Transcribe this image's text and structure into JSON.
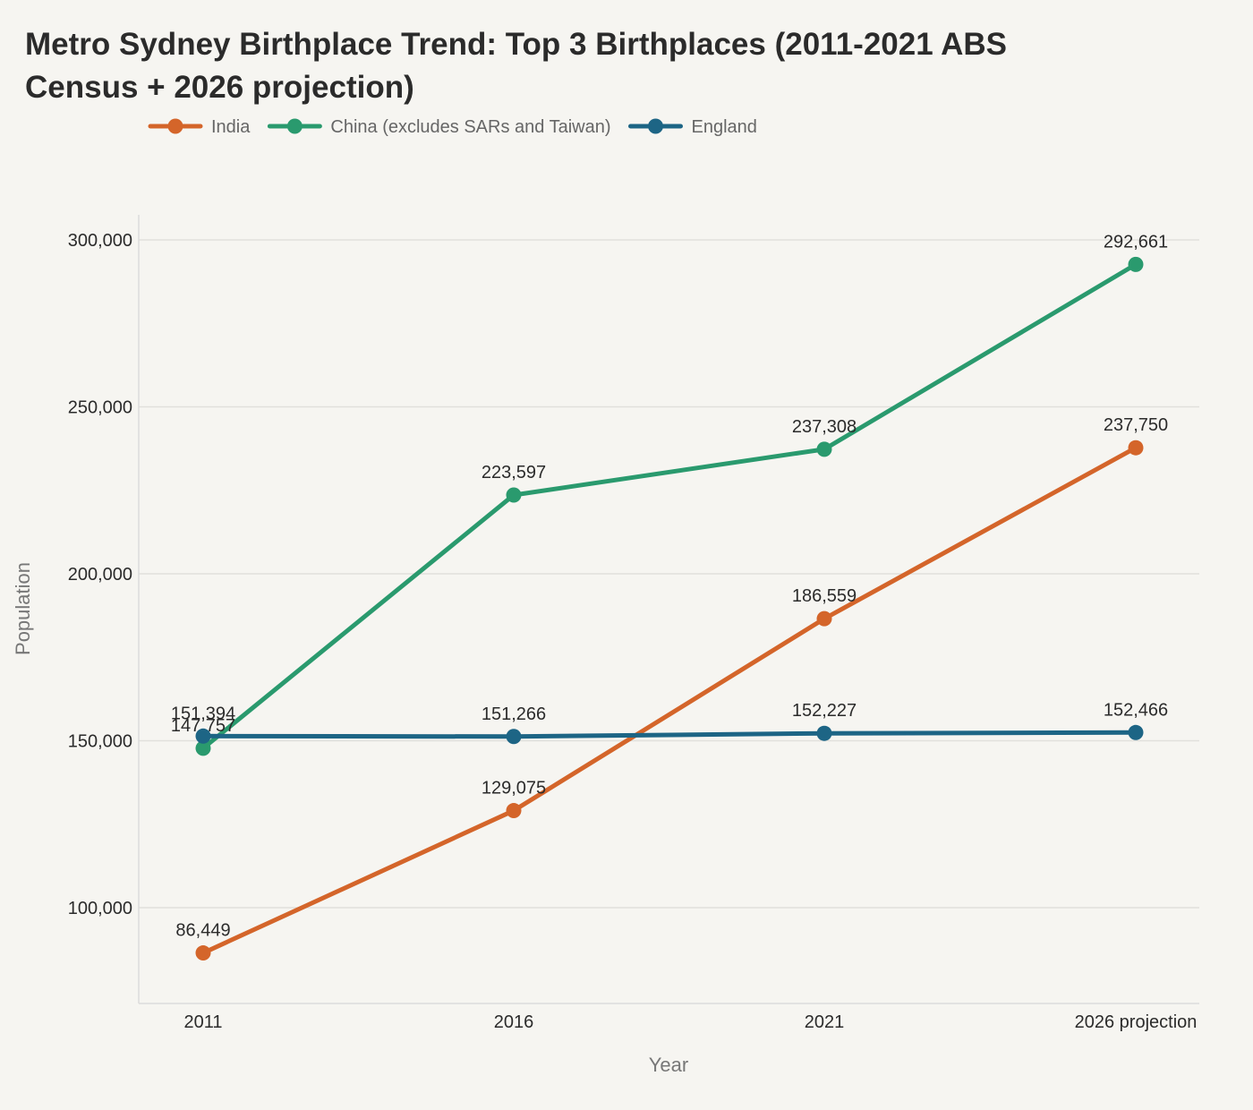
{
  "chart_data": {
    "type": "line",
    "title": "Metro Sydney Birthplace Trend: Top 3 Birthplaces (2011-2021 ABS Census + 2026 projection)",
    "xlabel": "Year",
    "ylabel": "Population",
    "categories": [
      "2011",
      "2016",
      "2021",
      "2026 projection"
    ],
    "ylim": [
      72000,
      308000
    ],
    "yticks": [
      100000,
      150000,
      200000,
      250000,
      300000
    ],
    "ytick_labels": [
      "100,000",
      "150,000",
      "200,000",
      "250,000",
      "300,000"
    ],
    "grid": true,
    "legend_position": "top-left",
    "series": [
      {
        "name": "India",
        "color": "#d4652a",
        "values": [
          86449,
          129075,
          186559,
          237750
        ],
        "labels": [
          "86,449",
          "129,075",
          "186,559",
          "237,750"
        ]
      },
      {
        "name": "China (excludes SARs and Taiwan)",
        "color": "#2a9a6e",
        "values": [
          147757,
          223597,
          237308,
          292661
        ],
        "labels": [
          "147,757",
          "223,597",
          "237,308",
          "292,661"
        ]
      },
      {
        "name": "England",
        "color": "#1d6585",
        "values": [
          151394,
          151266,
          152227,
          152466
        ],
        "labels": [
          "151,394",
          "151,266",
          "152,227",
          "152,466"
        ]
      }
    ]
  }
}
